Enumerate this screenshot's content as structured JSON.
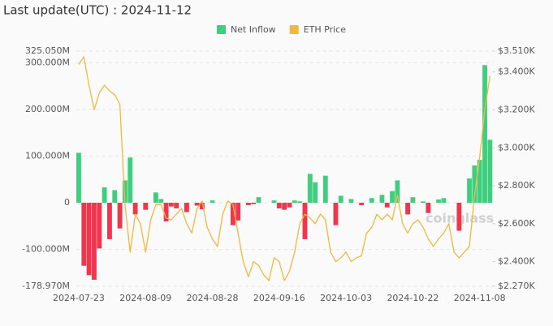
{
  "chart_data": {
    "type": "bar-line",
    "title": "Last update(UTC) : 2024-11-12",
    "watermark": "coinglass",
    "categories": [
      "2024-07-23",
      null,
      null,
      null,
      null,
      null,
      null,
      null,
      null,
      null,
      null,
      null,
      null,
      "2024-08-09",
      null,
      null,
      null,
      null,
      null,
      null,
      null,
      null,
      null,
      null,
      null,
      null,
      "2024-08-28",
      null,
      null,
      null,
      null,
      null,
      null,
      null,
      null,
      null,
      null,
      null,
      null,
      "2024-09-16",
      null,
      null,
      null,
      null,
      null,
      null,
      null,
      null,
      null,
      null,
      null,
      null,
      "2024-10-03",
      null,
      null,
      null,
      null,
      null,
      null,
      null,
      null,
      null,
      null,
      null,
      null,
      "2024-10-22",
      null,
      null,
      null,
      null,
      null,
      null,
      null,
      null,
      null,
      null,
      null,
      null,
      "2024-11-08",
      null,
      null
    ],
    "series": [
      {
        "name": "Net Inflow",
        "type": "bar",
        "color": "#3ecf7e",
        "negative_color": "#f2344c",
        "values": [
          107,
          -135,
          -155,
          -165,
          -98,
          33,
          -78,
          27,
          -55,
          48,
          97,
          -25,
          0,
          -15,
          0,
          22,
          8,
          -40,
          -8,
          -12,
          0,
          -20,
          0,
          -6,
          -14,
          0,
          5,
          0,
          0,
          0,
          -48,
          -38,
          0,
          -5,
          -3,
          12,
          0,
          0,
          5,
          -12,
          -15,
          -10,
          5,
          3,
          -78,
          62,
          44,
          0,
          58,
          0,
          -48,
          15,
          0,
          8,
          0,
          -5,
          0,
          10,
          0,
          17,
          -10,
          25,
          48,
          0,
          -25,
          12,
          0,
          3,
          -22,
          0,
          7,
          10,
          0,
          0,
          -60,
          0,
          52,
          80,
          92,
          295,
          135
        ]
      },
      {
        "name": "ETH Price",
        "type": "line",
        "axis": "y2",
        "color": "#f3b73f",
        "values": [
          3440,
          3480,
          3330,
          3200,
          3290,
          3330,
          3300,
          3280,
          3230,
          2700,
          2450,
          2650,
          2600,
          2450,
          2620,
          2700,
          2700,
          2630,
          2620,
          2650,
          2680,
          2600,
          2550,
          2680,
          2720,
          2580,
          2520,
          2480,
          2650,
          2720,
          2700,
          2550,
          2400,
          2320,
          2400,
          2380,
          2330,
          2300,
          2420,
          2400,
          2300,
          2350,
          2450,
          2600,
          2650,
          2630,
          2600,
          2650,
          2620,
          2450,
          2400,
          2420,
          2450,
          2400,
          2420,
          2430,
          2550,
          2580,
          2650,
          2620,
          2650,
          2620,
          2750,
          2600,
          2550,
          2600,
          2620,
          2580,
          2520,
          2480,
          2520,
          2550,
          2600,
          2450,
          2420,
          2450,
          2480,
          2750,
          2950,
          3200,
          3380
        ]
      }
    ],
    "ylim": [
      -178.97,
      325.05
    ],
    "yticks": [
      {
        "value": -178.97,
        "label": "-178.970M"
      },
      {
        "value": -100,
        "label": "-100.000M"
      },
      0,
      {
        "value": 100,
        "label": "100.000M"
      },
      {
        "value": 200,
        "label": "200.000M"
      },
      {
        "value": 300,
        "label": "300.000M"
      },
      {
        "value": 325.05,
        "label": "325.050M"
      }
    ],
    "y2lim": [
      2270,
      3510
    ],
    "y2ticks": [
      {
        "value": 2270,
        "label": "$2.270K"
      },
      {
        "value": 2400,
        "label": "$2.400K"
      },
      {
        "value": 2600,
        "label": "$2.600K"
      },
      {
        "value": 2800,
        "label": "$2.800K"
      },
      {
        "value": 3000,
        "label": "$3.000K"
      },
      {
        "value": 3200,
        "label": "$3.200K"
      },
      {
        "value": 3400,
        "label": "$3.400K"
      },
      {
        "value": 3510,
        "label": "$3.510K"
      }
    ],
    "grid": true,
    "legend": "top"
  }
}
